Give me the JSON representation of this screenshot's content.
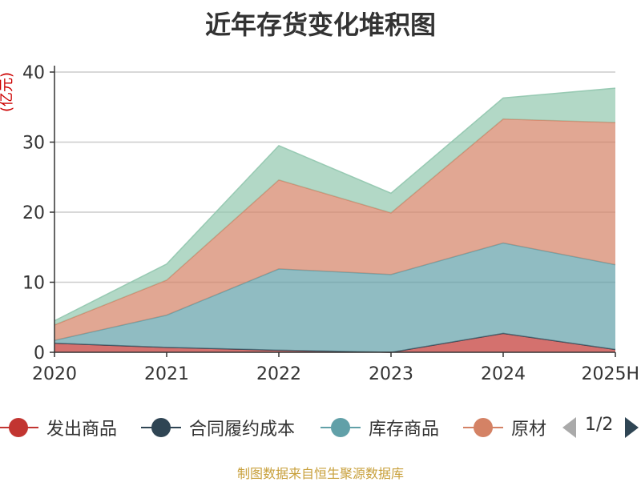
{
  "chart_data": {
    "type": "area",
    "stacked": true,
    "title": "近年存货变化堆积图",
    "ylabel": "(亿元)",
    "ylim": [
      0,
      40
    ],
    "yticks": [
      0,
      10,
      20,
      30,
      40
    ],
    "x": [
      "2020",
      "2021",
      "2022",
      "2023",
      "2024",
      "2025H"
    ],
    "series": [
      {
        "name": "发出商品",
        "color": "#c23531",
        "values": [
          1.3,
          0.7,
          0.3,
          0.0,
          2.7,
          0.4
        ]
      },
      {
        "name": "合同履约成本",
        "color": "#2f4554",
        "values": [
          0.0,
          0.0,
          0.0,
          0.0,
          0.0,
          0.0
        ]
      },
      {
        "name": "库存商品",
        "color": "#61a0a8",
        "values": [
          0.4,
          4.6,
          11.6,
          11.1,
          12.9,
          12.1
        ]
      },
      {
        "name": "原材料",
        "color": "#d48265",
        "values": [
          2.2,
          5.0,
          12.7,
          8.8,
          17.7,
          20.3
        ]
      },
      {
        "name": "",
        "color": "#91c7ae",
        "values": [
          0.6,
          2.3,
          4.9,
          2.8,
          3.0,
          4.9
        ]
      }
    ],
    "grid": true,
    "legend_position": "bottom"
  },
  "legend": {
    "items": [
      {
        "label": "发出商品",
        "color": "#c23531"
      },
      {
        "label": "合同履约成本",
        "color": "#2f4554"
      },
      {
        "label": "库存商品",
        "color": "#61a0a8"
      },
      {
        "label": "原材",
        "color": "#d48265"
      }
    ],
    "page_indicator": "1/2",
    "prev_color": "#aaaaaa",
    "next_color": "#2f4554"
  },
  "source_text": "制图数据来自恒生聚源数据库"
}
